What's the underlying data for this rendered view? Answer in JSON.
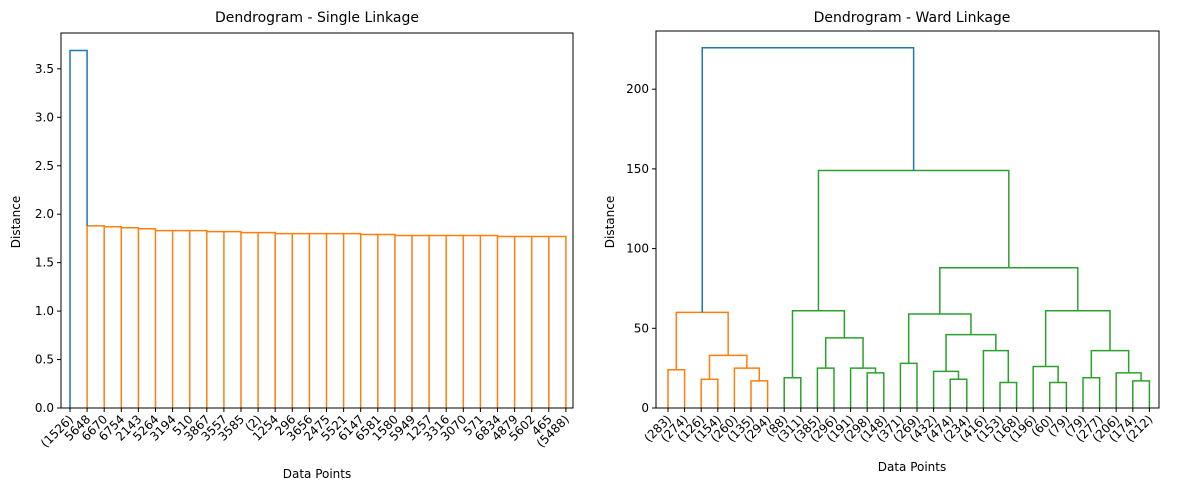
{
  "chart_data": [
    {
      "type": "dendrogram",
      "title": "Dendrogram - Single Linkage",
      "xlabel": "Data Points",
      "ylabel": "Distance",
      "ylim": [
        0,
        3.87
      ],
      "yticks": [
        "0.0",
        "0.5",
        "1.0",
        "1.5",
        "2.0",
        "2.5",
        "3.0",
        "3.5"
      ],
      "ytick_values": [
        0,
        0.5,
        1.0,
        1.5,
        2.0,
        2.5,
        3.0,
        3.5
      ],
      "leaves": [
        "(1526)",
        "5648",
        "6670",
        "6754",
        "2143",
        "5264",
        "3194",
        "510",
        "3867",
        "3557",
        "3585",
        "(2)",
        "1254",
        "296",
        "3656",
        "2475",
        "5521",
        "6147",
        "6581",
        "1580",
        "5949",
        "1257",
        "3316",
        "3070",
        "571",
        "6834",
        "4879",
        "5602",
        "465",
        "(5488)"
      ],
      "cluster_colors": [
        "#1f77b4",
        "#ff7f0e"
      ],
      "links": [
        {
          "left": 0,
          "right": 1,
          "height": 3.69,
          "color": "#1f77b4"
        },
        {
          "left": 1,
          "right": 2,
          "height": 1.88,
          "color": "#ff7f0e"
        },
        {
          "left": 2,
          "right": 3,
          "height": 1.87,
          "color": "#ff7f0e"
        },
        {
          "left": 3,
          "right": 4,
          "height": 1.86,
          "color": "#ff7f0e"
        },
        {
          "left": 4,
          "right": 5,
          "height": 1.85,
          "color": "#ff7f0e"
        },
        {
          "left": 5,
          "right": 6,
          "height": 1.83,
          "color": "#ff7f0e"
        },
        {
          "left": 6,
          "right": 7,
          "height": 1.83,
          "color": "#ff7f0e"
        },
        {
          "left": 7,
          "right": 8,
          "height": 1.83,
          "color": "#ff7f0e"
        },
        {
          "left": 8,
          "right": 9,
          "height": 1.82,
          "color": "#ff7f0e"
        },
        {
          "left": 9,
          "right": 10,
          "height": 1.82,
          "color": "#ff7f0e"
        },
        {
          "left": 10,
          "right": 11,
          "height": 1.81,
          "color": "#ff7f0e"
        },
        {
          "left": 11,
          "right": 12,
          "height": 1.81,
          "color": "#ff7f0e"
        },
        {
          "left": 12,
          "right": 13,
          "height": 1.8,
          "color": "#ff7f0e"
        },
        {
          "left": 13,
          "right": 14,
          "height": 1.8,
          "color": "#ff7f0e"
        },
        {
          "left": 14,
          "right": 15,
          "height": 1.8,
          "color": "#ff7f0e"
        },
        {
          "left": 15,
          "right": 16,
          "height": 1.8,
          "color": "#ff7f0e"
        },
        {
          "left": 16,
          "right": 17,
          "height": 1.8,
          "color": "#ff7f0e"
        },
        {
          "left": 17,
          "right": 18,
          "height": 1.79,
          "color": "#ff7f0e"
        },
        {
          "left": 18,
          "right": 19,
          "height": 1.79,
          "color": "#ff7f0e"
        },
        {
          "left": 19,
          "right": 20,
          "height": 1.78,
          "color": "#ff7f0e"
        },
        {
          "left": 20,
          "right": 21,
          "height": 1.78,
          "color": "#ff7f0e"
        },
        {
          "left": 21,
          "right": 22,
          "height": 1.78,
          "color": "#ff7f0e"
        },
        {
          "left": 22,
          "right": 23,
          "height": 1.78,
          "color": "#ff7f0e"
        },
        {
          "left": 23,
          "right": 24,
          "height": 1.78,
          "color": "#ff7f0e"
        },
        {
          "left": 24,
          "right": 25,
          "height": 1.78,
          "color": "#ff7f0e"
        },
        {
          "left": 25,
          "right": 26,
          "height": 1.77,
          "color": "#ff7f0e"
        },
        {
          "left": 26,
          "right": 27,
          "height": 1.77,
          "color": "#ff7f0e"
        },
        {
          "left": 27,
          "right": 28,
          "height": 1.77,
          "color": "#ff7f0e"
        },
        {
          "left": 28,
          "right": 29,
          "height": 1.77,
          "color": "#ff7f0e"
        }
      ]
    },
    {
      "type": "dendrogram",
      "title": "Dendrogram - Ward Linkage",
      "xlabel": "Data Points",
      "ylabel": "Distance",
      "ylim": [
        0,
        236.5
      ],
      "yticks": [
        "0",
        "50",
        "100",
        "150",
        "200"
      ],
      "ytick_values": [
        0,
        50,
        100,
        150,
        200
      ],
      "leaves": [
        "(283)",
        "(274)",
        "(126)",
        "(154)",
        "(260)",
        "(135)",
        "(294)",
        "(88)",
        "(311)",
        "(385)",
        "(296)",
        "(191)",
        "(298)",
        "(148)",
        "(371)",
        "(269)",
        "(432)",
        "(474)",
        "(234)",
        "(416)",
        "(153)",
        "(168)",
        "(196)",
        "(60)",
        "(79)",
        "(79)",
        "(277)",
        "(206)",
        "(174)",
        "(212)"
      ],
      "cluster_colors": [
        "#1f77b4",
        "#ff7f0e",
        "#2ca02c"
      ],
      "tree": {
        "h": 226,
        "c": "#1f77b4",
        "ch": [
          {
            "h": 60,
            "c": "#ff7f0e",
            "ch": [
              {
                "h": 24,
                "c": "#ff7f0e",
                "ch": [
                  0,
                  1
                ]
              },
              {
                "h": 33,
                "c": "#ff7f0e",
                "ch": [
                  {
                    "h": 18,
                    "c": "#ff7f0e",
                    "ch": [
                      2,
                      3
                    ]
                  },
                  {
                    "h": 25,
                    "c": "#ff7f0e",
                    "ch": [
                      4,
                      {
                        "h": 17,
                        "c": "#ff7f0e",
                        "ch": [
                          5,
                          6
                        ]
                      }
                    ]
                  }
                ]
              }
            ]
          },
          {
            "h": 149,
            "c": "#2ca02c",
            "ch": [
              {
                "h": 61,
                "c": "#2ca02c",
                "ch": [
                  {
                    "h": 19,
                    "c": "#2ca02c",
                    "ch": [
                      7,
                      8
                    ]
                  },
                  {
                    "h": 44,
                    "c": "#2ca02c",
                    "ch": [
                      {
                        "h": 25,
                        "c": "#2ca02c",
                        "ch": [
                          9,
                          10
                        ]
                      },
                      {
                        "h": 25,
                        "c": "#2ca02c",
                        "ch": [
                          11,
                          {
                            "h": 22,
                            "c": "#2ca02c",
                            "ch": [
                              12,
                              13
                            ]
                          }
                        ]
                      }
                    ]
                  }
                ]
              },
              {
                "h": 88,
                "c": "#2ca02c",
                "ch": [
                  {
                    "h": 59,
                    "c": "#2ca02c",
                    "ch": [
                      {
                        "h": 28,
                        "c": "#2ca02c",
                        "ch": [
                          14,
                          15
                        ]
                      },
                      {
                        "h": 46,
                        "c": "#2ca02c",
                        "ch": [
                          {
                            "h": 23,
                            "c": "#2ca02c",
                            "ch": [
                              16,
                              {
                                "h": 18,
                                "c": "#2ca02c",
                                "ch": [
                                  17,
                                  18
                                ]
                              }
                            ]
                          },
                          {
                            "h": 36,
                            "c": "#2ca02c",
                            "ch": [
                              19,
                              {
                                "h": 16,
                                "c": "#2ca02c",
                                "ch": [
                                  20,
                                  21
                                ]
                              }
                            ]
                          }
                        ]
                      }
                    ]
                  },
                  {
                    "h": 61,
                    "c": "#2ca02c",
                    "ch": [
                      {
                        "h": 26,
                        "c": "#2ca02c",
                        "ch": [
                          22,
                          {
                            "h": 16,
                            "c": "#2ca02c",
                            "ch": [
                              23,
                              24
                            ]
                          }
                        ]
                      },
                      {
                        "h": 36,
                        "c": "#2ca02c",
                        "ch": [
                          {
                            "h": 19,
                            "c": "#2ca02c",
                            "ch": [
                              25,
                              26
                            ]
                          },
                          {
                            "h": 22,
                            "c": "#2ca02c",
                            "ch": [
                              27,
                              {
                                "h": 17,
                                "c": "#2ca02c",
                                "ch": [
                                  28,
                                  29
                                ]
                              }
                            ]
                          }
                        ]
                      }
                    ]
                  }
                ]
              }
            ]
          }
        ]
      }
    }
  ]
}
